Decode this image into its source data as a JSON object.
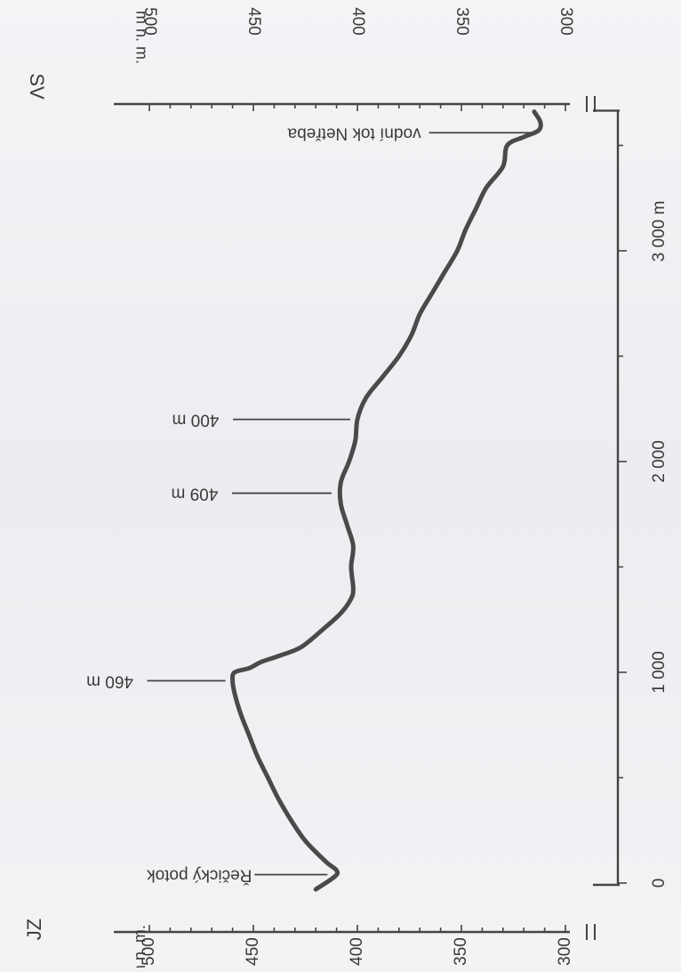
{
  "chart_data": {
    "type": "line",
    "orientation": "rotated-90-clockwise",
    "xlabel": "m",
    "ylabel": "m n. m.",
    "x_ticks": [
      0,
      1000,
      2000,
      3000
    ],
    "x_tick_labels": [
      "0",
      "1 000",
      "2 000",
      "3 000 m"
    ],
    "ylim": [
      300,
      500
    ],
    "y_ticks": [
      300,
      350,
      400,
      450,
      500
    ],
    "y_tick_labels": [
      "300",
      "350",
      "400",
      "450",
      "500"
    ],
    "ends": {
      "left": "JZ",
      "right": "SV"
    },
    "series": [
      {
        "x": [
          -30,
          30,
          60,
          100,
          200,
          300,
          400,
          500,
          600,
          700,
          800,
          900,
          960,
          1000,
          1020,
          1050,
          1080,
          1120,
          1200,
          1280,
          1350,
          1400,
          1500,
          1600,
          1700,
          1800,
          1900,
          2000,
          2100,
          2200,
          2300,
          2400,
          2500,
          2600,
          2700,
          2800,
          2900,
          3000,
          3100,
          3200,
          3300,
          3400,
          3500,
          3540,
          3570,
          3610,
          3660
        ],
        "y": [
          420,
          411,
          410,
          415,
          425,
          432,
          438,
          443,
          448,
          452,
          456,
          459,
          460,
          459,
          452,
          446,
          437,
          427,
          417,
          408,
          403,
          402,
          403,
          402,
          405,
          408,
          408,
          404,
          401,
          400,
          396,
          388,
          380,
          374,
          370,
          364,
          358,
          352,
          348,
          343,
          338,
          330,
          328,
          320,
          313,
          312,
          315
        ]
      }
    ],
    "annotations": [
      {
        "text": "Řečický potok",
        "x": 40,
        "y": 411
      },
      {
        "text": "460 m",
        "x": 960,
        "y": 460
      },
      {
        "text": "409 m",
        "x": 1850,
        "y": 409
      },
      {
        "text": "400 m",
        "x": 2200,
        "y": 400
      },
      {
        "text": "vodní tok Netřeba",
        "x": 3560,
        "y": 313
      }
    ]
  }
}
